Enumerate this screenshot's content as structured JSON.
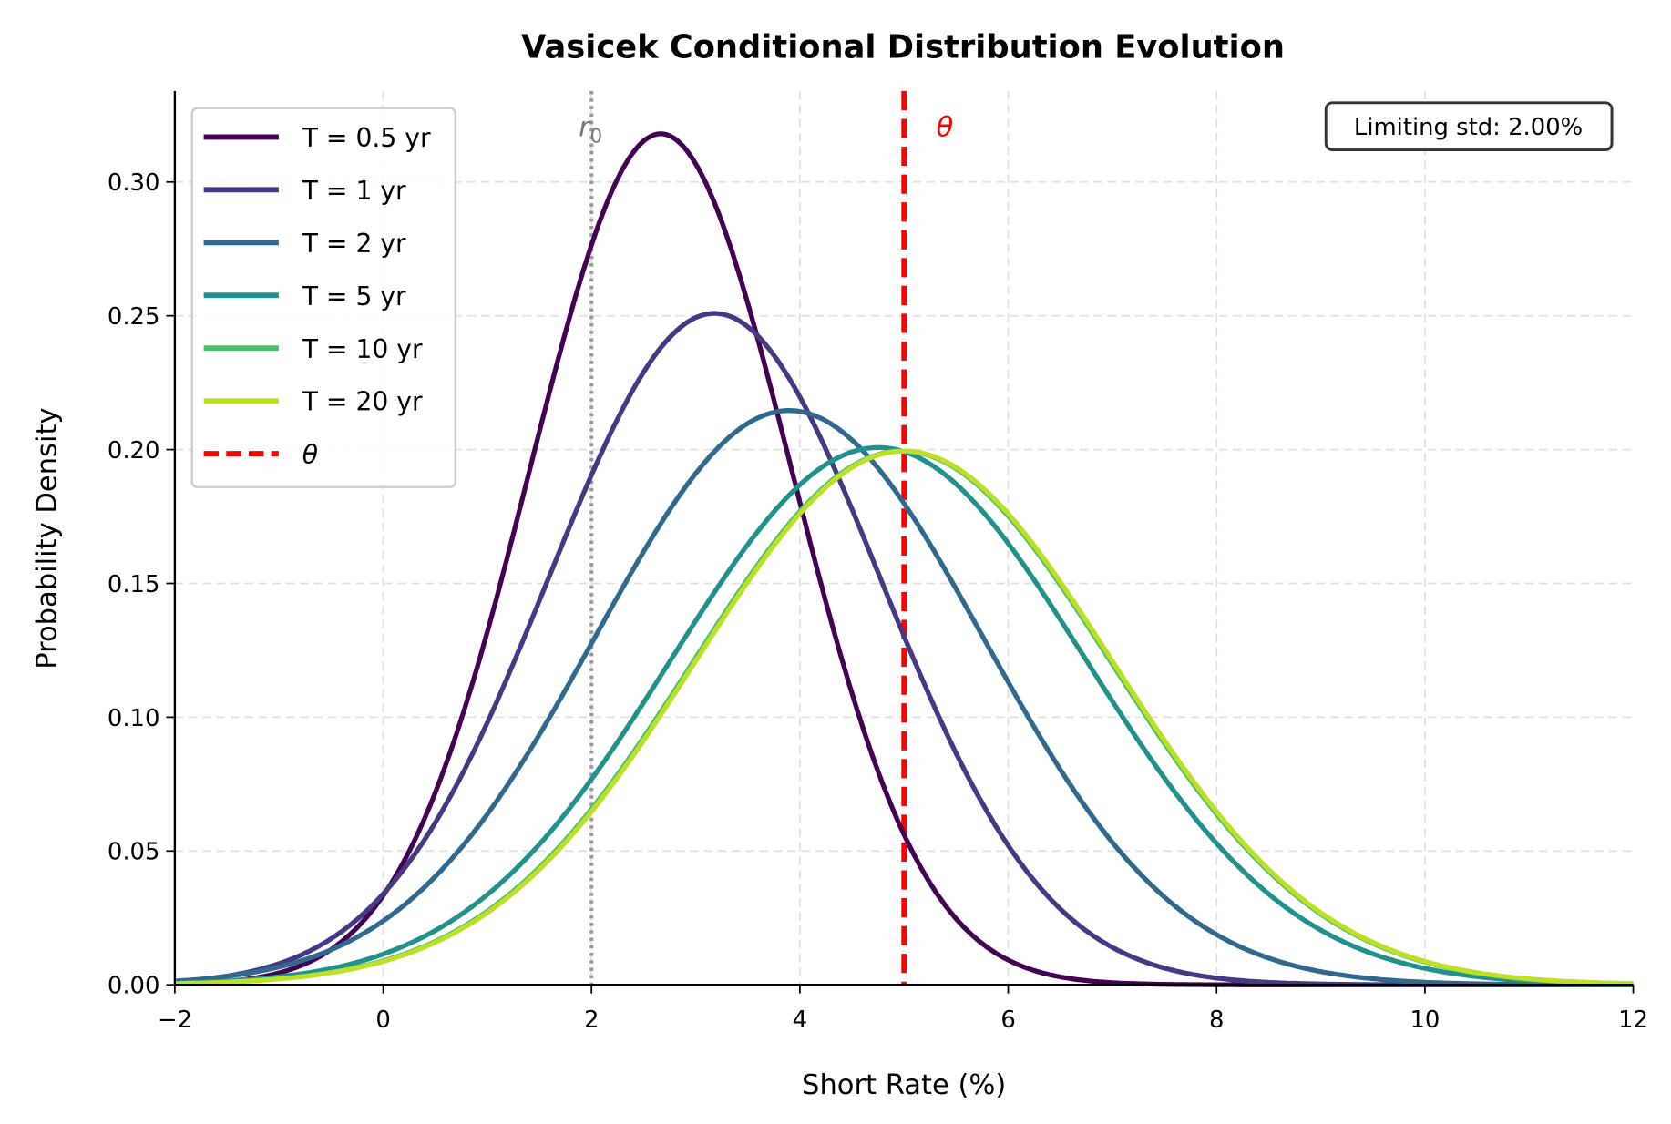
{
  "chart_data": {
    "type": "line",
    "title": "Vasicek Conditional Distribution Evolution",
    "xlabel": "Short Rate (%)",
    "ylabel": "Probability Density",
    "xlim": [
      -2,
      12
    ],
    "ylim": [
      0,
      0.334
    ],
    "xticks": [
      -2,
      0,
      2,
      4,
      6,
      8,
      10,
      12
    ],
    "xtick_labels": [
      "−2",
      "0",
      "2",
      "4",
      "6",
      "8",
      "10",
      "12"
    ],
    "yticks": [
      0,
      0.05,
      0.1,
      0.15,
      0.2,
      0.25,
      0.3
    ],
    "ytick_labels": [
      "0.00",
      "0.05",
      "0.10",
      "0.15",
      "0.20",
      "0.25",
      "0.30"
    ],
    "grid": true,
    "legend_placement": "top-left",
    "series": [
      {
        "name": "T = 0.5 yr",
        "distribution": "normal",
        "mean": 2.664,
        "std": 1.2545,
        "color": "#440154"
      },
      {
        "name": "T = 1 yr",
        "distribution": "normal",
        "mean": 3.18,
        "std": 1.59,
        "color": "#443983"
      },
      {
        "name": "T = 2 yr",
        "distribution": "normal",
        "mean": 3.896,
        "std": 1.859,
        "color": "#31688e"
      },
      {
        "name": "T = 5 yr",
        "distribution": "normal",
        "mean": 4.754,
        "std": 1.987,
        "color": "#21918c"
      },
      {
        "name": "T = 10 yr",
        "distribution": "normal",
        "mean": 4.98,
        "std": 2.0,
        "color": "#4ac16d"
      },
      {
        "name": "T = 20 yr",
        "distribution": "normal",
        "mean": 5.0,
        "std": 2.0,
        "color": "#bddf26"
      }
    ],
    "vlines": [
      {
        "name": "r0",
        "label": "r",
        "subscript": "0",
        "x": 2,
        "style": "dotted",
        "color": "#999999"
      },
      {
        "name": "theta",
        "label": "θ",
        "x": 5,
        "style": "dashed",
        "color": "#ff0000",
        "legend": "θ"
      }
    ],
    "annotation": "Limiting std: 2.00%"
  }
}
